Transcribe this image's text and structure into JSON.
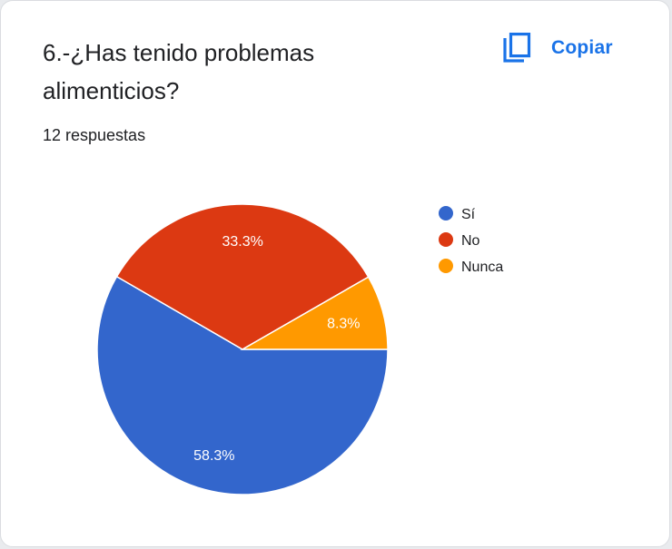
{
  "question": {
    "title": "6.-¿Has tenido problemas alimenticios?",
    "responses": "12 respuestas"
  },
  "actions": {
    "copy_label": "Copiar",
    "copy_icon": "copy-icon"
  },
  "colors": {
    "accent": "#1a73e8"
  },
  "chart_data": {
    "type": "pie",
    "categories": [
      "Sí",
      "No",
      "Nunca"
    ],
    "values": [
      58.3,
      33.3,
      8.3
    ],
    "labels": [
      "58.3%",
      "33.3%",
      "8.3%"
    ],
    "colors": [
      "#3366cc",
      "#dc3912",
      "#ff9900"
    ],
    "legend": "right",
    "start_angle_deg": 0,
    "direction": "clockwise"
  }
}
